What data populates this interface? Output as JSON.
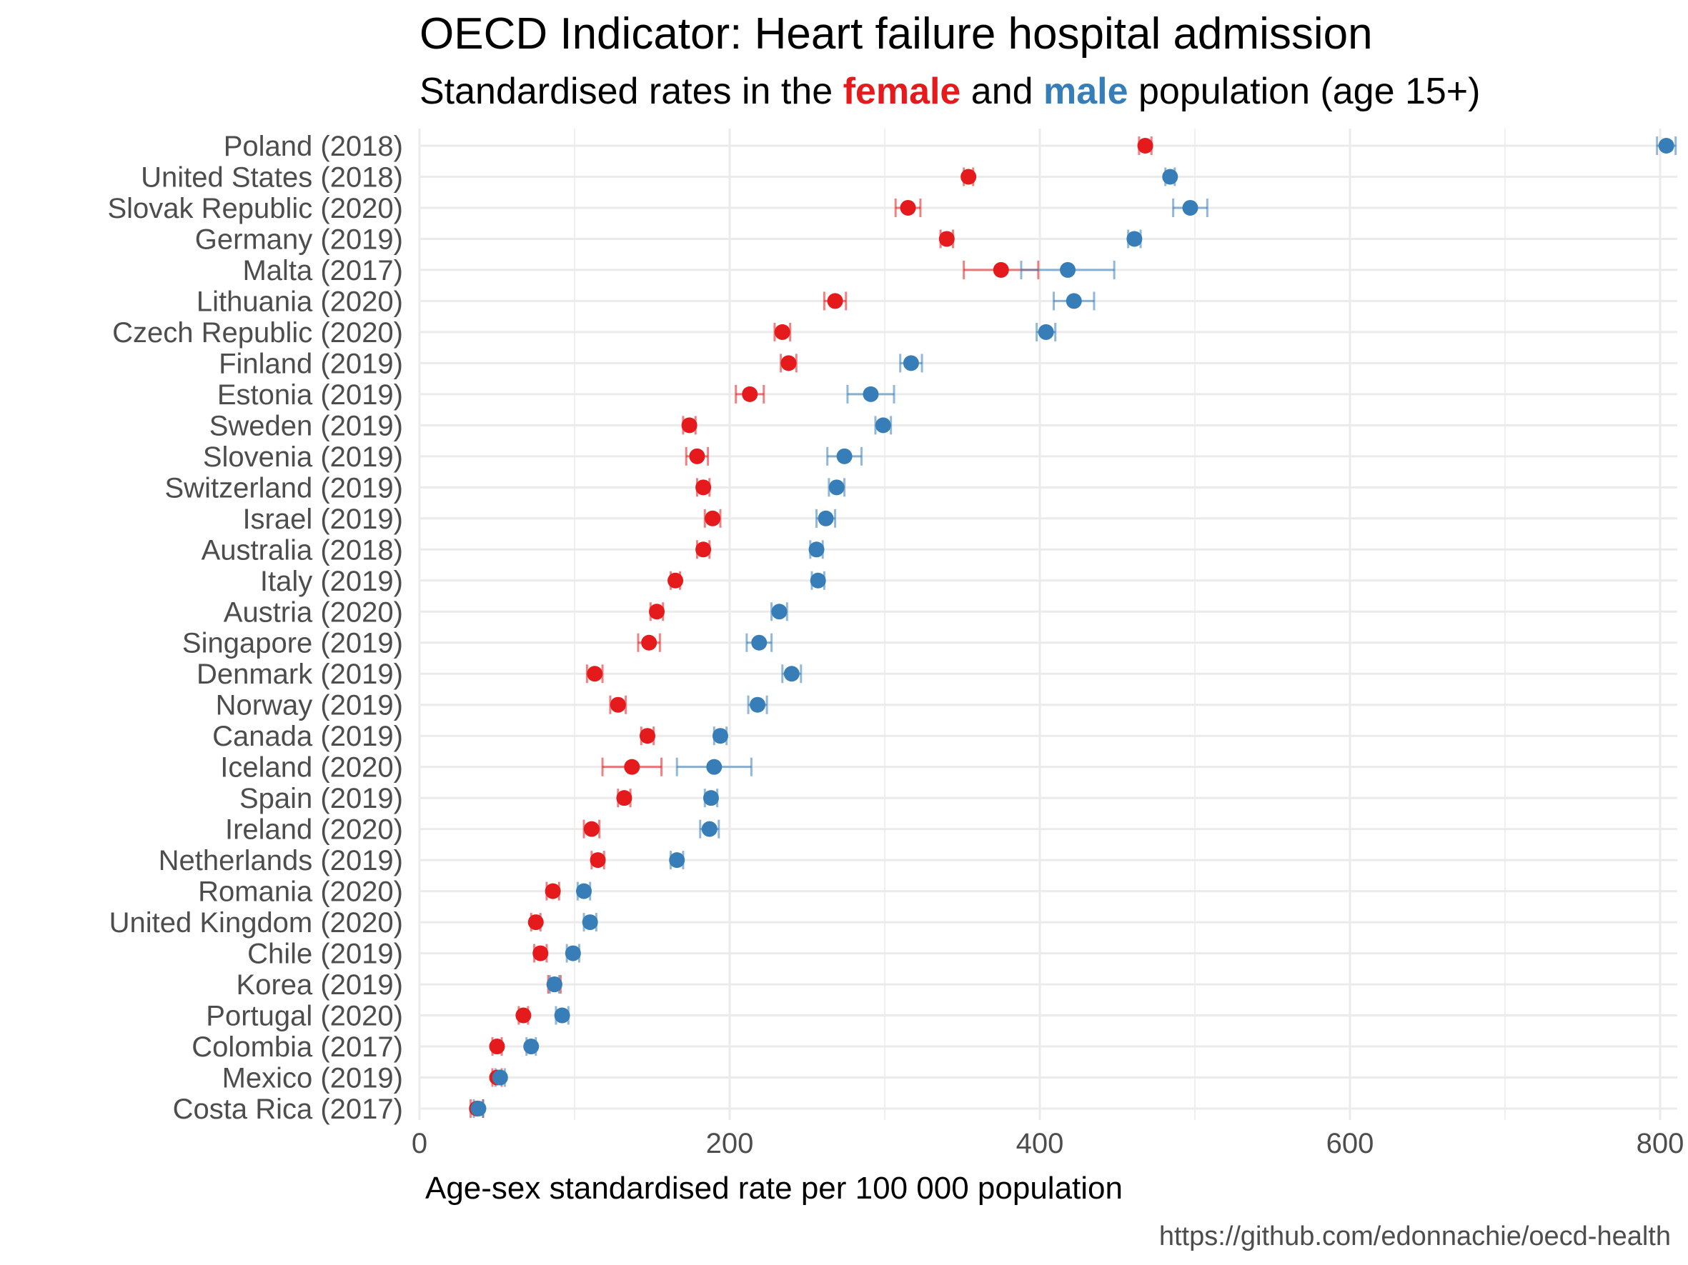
{
  "title_main": "OECD Indicator: Heart failure hospital admission",
  "subtitle": {
    "prefix": "Standardised rates in the ",
    "female": "female",
    "middle": " and ",
    "male": "male",
    "suffix": " population (age 15+)"
  },
  "caption": "https://github.com/edonnachie/oecd-health",
  "colors": {
    "female": "#e41a1c",
    "male": "#377eb8",
    "grid": "#ebebeb",
    "label": "#4d4d4d"
  },
  "chart_data": {
    "type": "scatter",
    "title": "OECD Indicator: Heart failure hospital admission",
    "xlabel": "Age-sex standardised rate per 100 000 population",
    "ylabel": "",
    "xlim": [
      0,
      810
    ],
    "xticks": [
      0,
      200,
      400,
      600,
      800
    ],
    "tick_labels": [
      "0",
      "200",
      "400",
      "600",
      "800"
    ],
    "grid": true,
    "legend": "none (colours explained in subtitle)",
    "categories": [
      "Poland (2018)",
      "United States (2018)",
      "Slovak Republic (2020)",
      "Germany (2019)",
      "Malta (2017)",
      "Lithuania (2020)",
      "Czech Republic (2020)",
      "Finland (2019)",
      "Estonia (2019)",
      "Sweden (2019)",
      "Slovenia (2019)",
      "Switzerland (2019)",
      "Israel (2019)",
      "Australia (2018)",
      "Italy (2019)",
      "Austria (2020)",
      "Singapore (2019)",
      "Denmark (2019)",
      "Norway (2019)",
      "Canada (2019)",
      "Iceland (2020)",
      "Spain (2019)",
      "Ireland (2020)",
      "Netherlands (2019)",
      "Romania (2020)",
      "United Kingdom (2020)",
      "Chile (2019)",
      "Korea (2019)",
      "Portugal (2020)",
      "Colombia (2017)",
      "Mexico (2019)",
      "Costa Rica (2017)"
    ],
    "series": [
      {
        "name": "female",
        "color": "#e41a1c",
        "values": [
          468,
          354,
          315,
          340,
          375,
          268,
          234,
          238,
          213,
          174,
          179,
          183,
          189,
          183,
          165,
          153,
          148,
          113,
          128,
          147,
          137,
          132,
          111,
          115,
          86,
          75,
          78,
          87,
          67,
          50,
          50,
          37
        ],
        "lower": [
          464,
          351,
          307,
          336,
          351,
          261,
          229,
          233,
          204,
          170,
          172,
          179,
          184,
          179,
          162,
          149,
          141,
          108,
          123,
          143,
          118,
          128,
          106,
          111,
          82,
          72,
          74,
          83,
          64,
          47,
          47,
          33
        ],
        "upper": [
          472,
          357,
          323,
          344,
          399,
          275,
          239,
          243,
          222,
          178,
          186,
          187,
          194,
          187,
          168,
          157,
          155,
          118,
          133,
          151,
          156,
          136,
          116,
          119,
          90,
          78,
          82,
          91,
          70,
          53,
          53,
          41
        ]
      },
      {
        "name": "male",
        "color": "#377eb8",
        "values": [
          804,
          484,
          497,
          461,
          418,
          422,
          404,
          317,
          291,
          299,
          274,
          269,
          262,
          256,
          257,
          232,
          219,
          240,
          218,
          194,
          190,
          188,
          187,
          166,
          106,
          110,
          99,
          87,
          92,
          72,
          52,
          38
        ],
        "lower": [
          798,
          481,
          486,
          457,
          388,
          409,
          398,
          310,
          276,
          294,
          263,
          264,
          256,
          252,
          253,
          227,
          211,
          234,
          212,
          190,
          166,
          184,
          181,
          162,
          102,
          106,
          95,
          84,
          88,
          69,
          49,
          35
        ],
        "upper": [
          810,
          487,
          508,
          465,
          448,
          435,
          410,
          324,
          306,
          304,
          285,
          274,
          268,
          260,
          261,
          237,
          227,
          246,
          224,
          198,
          214,
          192,
          193,
          170,
          110,
          114,
          103,
          90,
          96,
          75,
          55,
          41
        ]
      }
    ]
  }
}
